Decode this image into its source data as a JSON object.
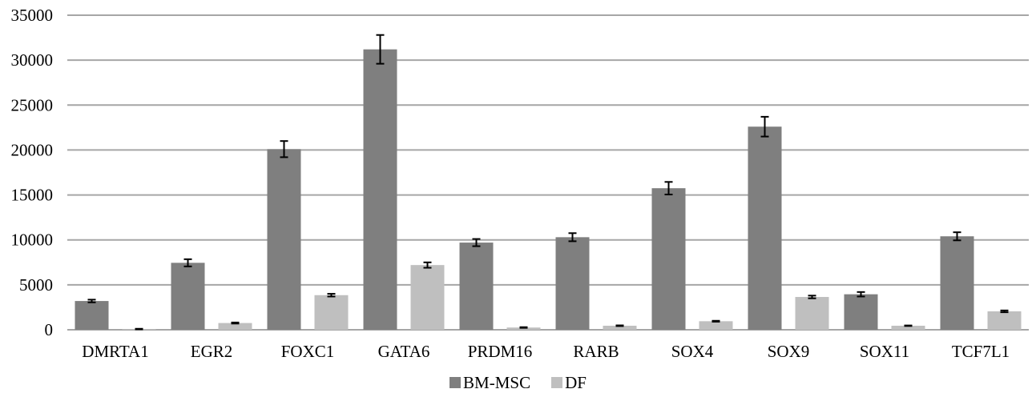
{
  "chart_data": {
    "type": "bar",
    "title": "",
    "xlabel": "",
    "ylabel": "",
    "categories": [
      "DMRTA1",
      "EGR2",
      "FOXC1",
      "GATA6",
      "PRDM16",
      "RARB",
      "SOX4",
      "SOX9",
      "SOX11",
      "TCF7L1"
    ],
    "series": [
      {
        "name": "BM-MSC",
        "color": "#7f7f7f",
        "values": [
          3200,
          7450,
          20100,
          31200,
          9700,
          10300,
          15750,
          22600,
          3950,
          10400
        ],
        "errors": [
          150,
          400,
          900,
          1600,
          400,
          450,
          700,
          1100,
          250,
          450
        ]
      },
      {
        "name": "DF",
        "color": "#bfbfbf",
        "values": [
          80,
          750,
          3850,
          7200,
          250,
          450,
          950,
          3650,
          450,
          2050
        ],
        "errors": [
          30,
          60,
          150,
          300,
          40,
          40,
          50,
          150,
          30,
          100
        ]
      }
    ],
    "ylim": [
      0,
      35000
    ],
    "yticks": [
      0,
      5000,
      10000,
      15000,
      20000,
      25000,
      30000,
      35000
    ],
    "grid": true,
    "legend_position": "bottom-center"
  }
}
